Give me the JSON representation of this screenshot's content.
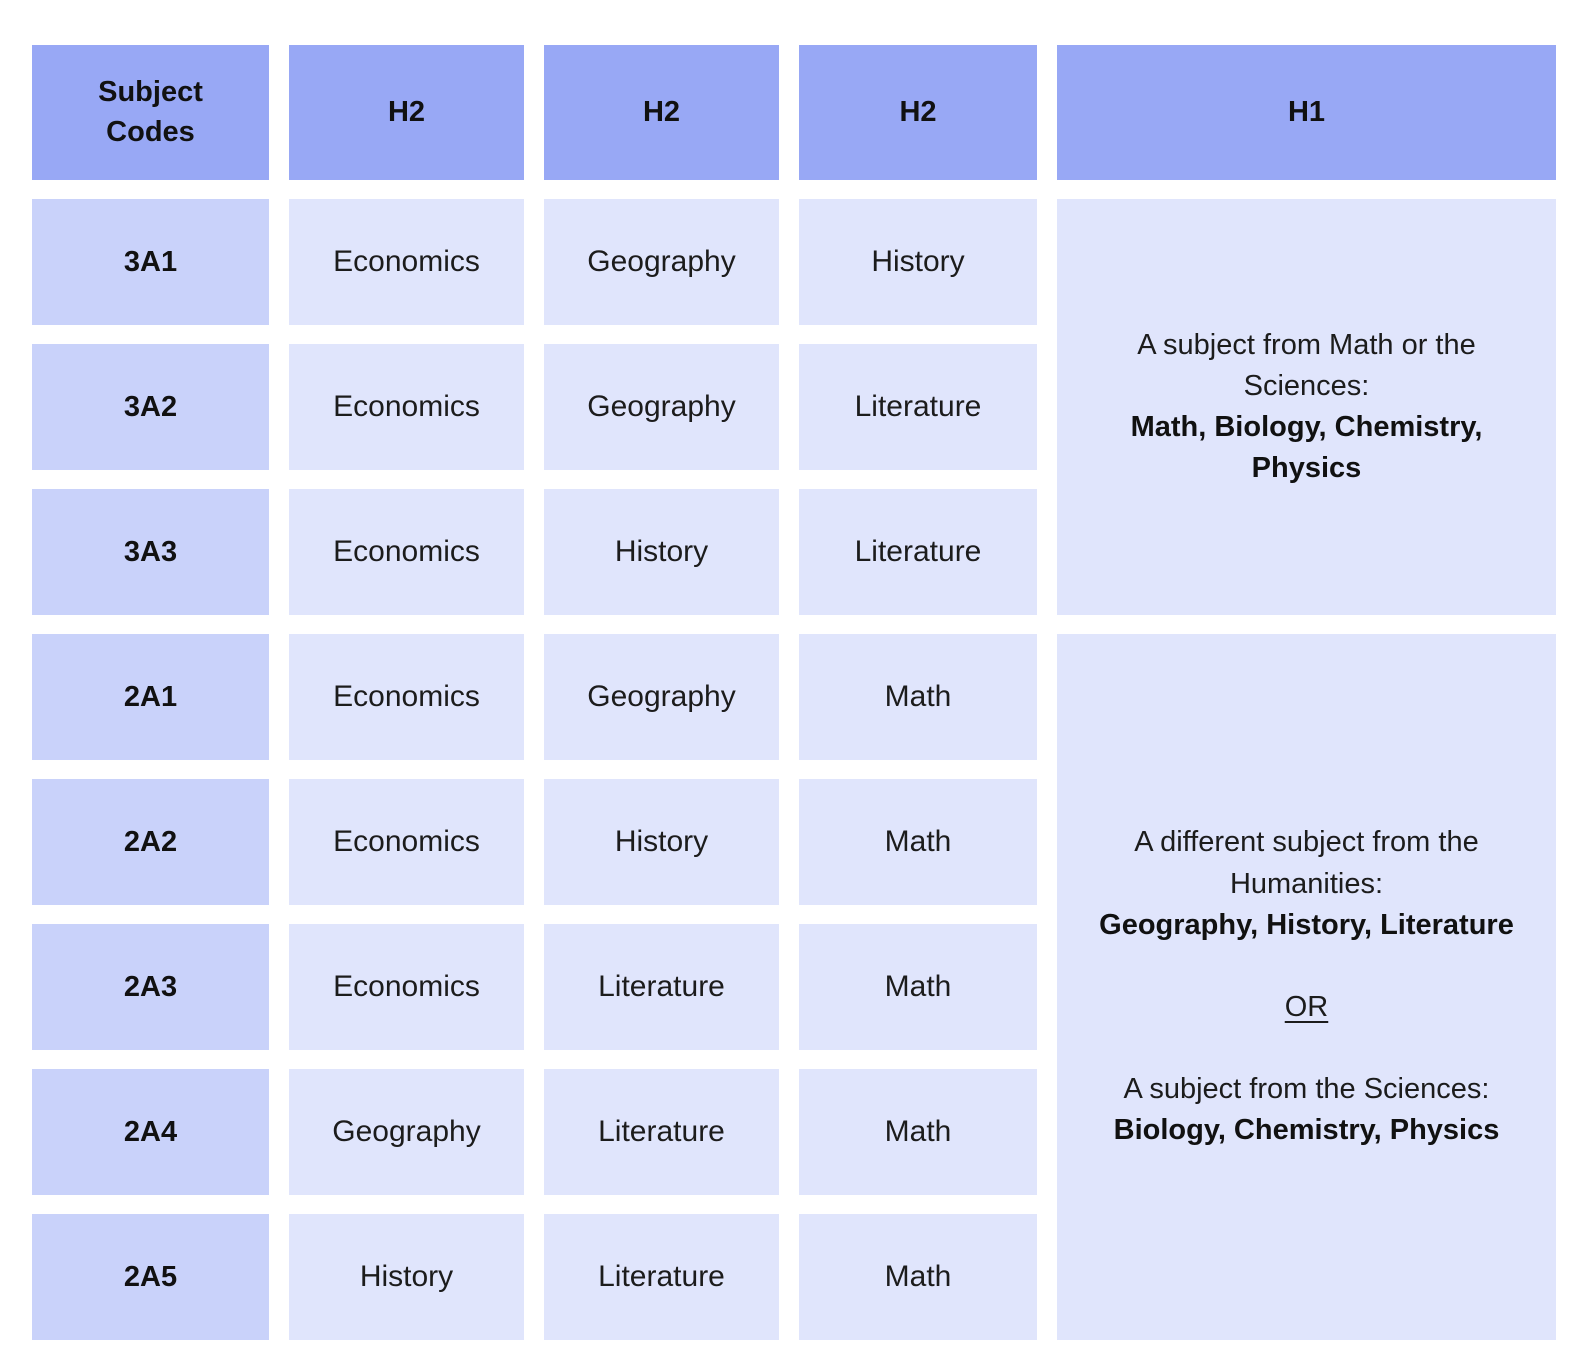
{
  "colors": {
    "header_bg": "#98A8F5",
    "code_bg": "#C9D2FA",
    "cell_bg": "#E0E5FC",
    "gap_bg": "#FFFFFF",
    "text_dark": "#111111",
    "text_body": "#1C1C1C"
  },
  "table": {
    "column_headers": [
      "Subject Codes",
      "H2",
      "H2",
      "H2",
      "H1"
    ],
    "rows": [
      {
        "code": "3A1",
        "h2_subjects": [
          "Economics",
          "Geography",
          "History"
        ]
      },
      {
        "code": "3A2",
        "h2_subjects": [
          "Economics",
          "Geography",
          "Literature"
        ]
      },
      {
        "code": "3A3",
        "h2_subjects": [
          "Economics",
          "History",
          "Literature"
        ]
      },
      {
        "code": "2A1",
        "h2_subjects": [
          "Economics",
          "Geography",
          "Math"
        ]
      },
      {
        "code": "2A2",
        "h2_subjects": [
          "Economics",
          "History",
          "Math"
        ]
      },
      {
        "code": "2A3",
        "h2_subjects": [
          "Economics",
          "Literature",
          "Math"
        ]
      },
      {
        "code": "2A4",
        "h2_subjects": [
          "Geography",
          "Literature",
          "Math"
        ]
      },
      {
        "code": "2A5",
        "h2_subjects": [
          "History",
          "Literature",
          "Math"
        ]
      }
    ],
    "h1_column": {
      "group1": {
        "intro": "A subject from Math or the Sciences:",
        "options_bold": "Math, Biology, Chemistry, Physics"
      },
      "group2": {
        "intro": "A different subject from the Humanities:",
        "options_bold": "Geography, History, Literature",
        "or_label": "OR",
        "intro2": "A subject from the Sciences:",
        "options2_bold": "Biology, Chemistry, Physics"
      }
    }
  }
}
